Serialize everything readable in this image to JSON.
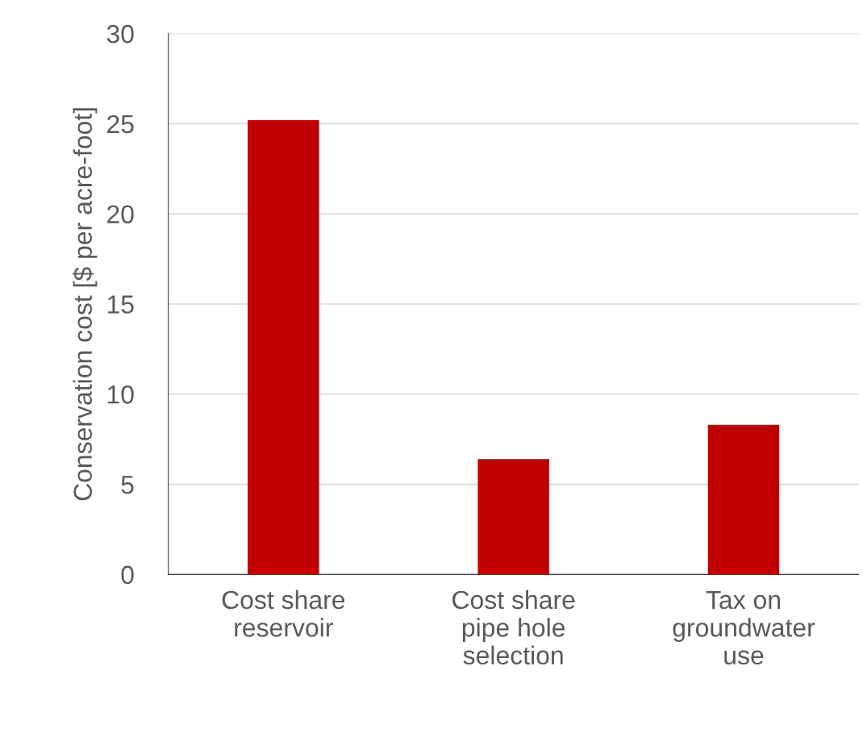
{
  "chart_data": {
    "type": "bar",
    "ylabel": "Conservation cost [$ per acre-foot]",
    "categories": [
      "Cost share\nreservoir",
      "Cost share\npipe hole\nselection",
      "Tax on\ngroundwater\nuse"
    ],
    "values": [
      25.2,
      6.4,
      8.3
    ],
    "color": "#c00000",
    "ylim": [
      0,
      30
    ],
    "yticks": [
      0,
      5,
      10,
      15,
      20,
      25,
      30
    ],
    "grid": "y",
    "legend": false
  }
}
